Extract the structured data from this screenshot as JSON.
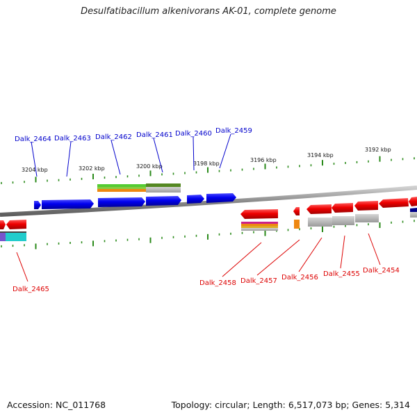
{
  "title": "Desulfatibacillum alkenivorans AK-01, complete genome",
  "footer": {
    "accession": "Accession: NC_011768",
    "topology": "Topology: circular; Length: 6,517,073 bp; Genes: 5,314"
  },
  "scale_labels": [
    "3204 kbp",
    "3202 kbp",
    "3200 kbp",
    "3198 kbp",
    "3196 kbp",
    "3194 kbp",
    "3192 kbp"
  ],
  "genes_top": [
    "Dalk_2464",
    "Dalk_2463",
    "Dalk_2462",
    "Dalk_2461",
    "Dalk_2460",
    "Dalk_2459"
  ],
  "genes_bottom": [
    "Dalk_2465",
    "Dalk_2458",
    "Dalk_2457",
    "Dalk_2456",
    "Dalk_2455",
    "Dalk_2454"
  ],
  "colors": {
    "forward_strand": "#0000ee",
    "reverse_strand": "#ee0000",
    "tick": "#2a8a1a",
    "backbone": "#8c8c8c"
  }
}
